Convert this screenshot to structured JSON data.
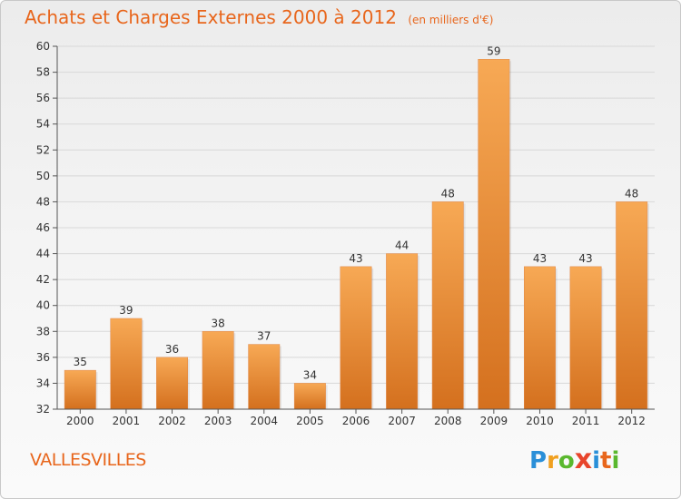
{
  "title": "Achats et Charges Externes 2000 à 2012",
  "unit_label": "(en milliers d'€)",
  "place": "VALLESVILLES",
  "logo": {
    "letters": [
      "P",
      "r",
      "o",
      "x",
      "i",
      "t",
      "i"
    ],
    "colors": [
      "#2a8fd8",
      "#f0a020",
      "#5ab82e",
      "#e8452c",
      "#2a8fd8",
      "#e8661c",
      "#5ab82e"
    ]
  },
  "colors": {
    "bar_top": "#f7a955",
    "bar_bottom": "#d4701e",
    "text_accent": "#e8661c",
    "axis": "#555555"
  },
  "chart_data": {
    "type": "bar",
    "categories": [
      "2000",
      "2001",
      "2002",
      "2003",
      "2004",
      "2005",
      "2006",
      "2007",
      "2008",
      "2009",
      "2010",
      "2011",
      "2012"
    ],
    "values": [
      35,
      39,
      36,
      38,
      37,
      34,
      43,
      44,
      48,
      59,
      43,
      43,
      48
    ],
    "ylim": [
      32,
      60
    ],
    "yticks": [
      32,
      34,
      36,
      38,
      40,
      42,
      44,
      46,
      48,
      50,
      52,
      54,
      56,
      58,
      60
    ],
    "grid": true
  }
}
